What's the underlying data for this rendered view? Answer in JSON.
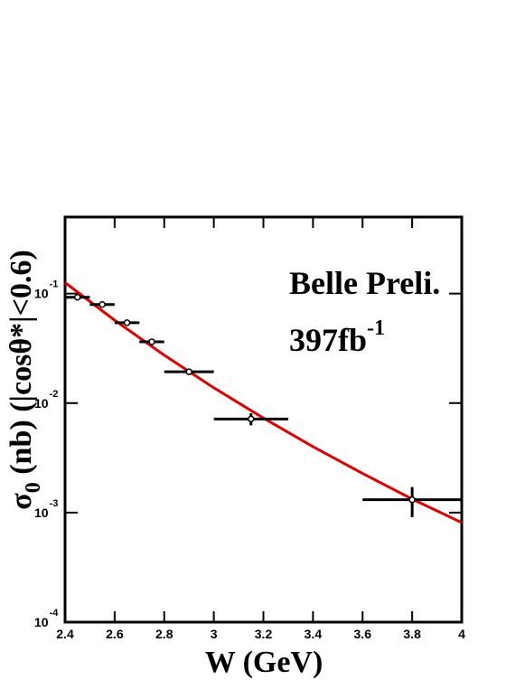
{
  "chart_data": {
    "type": "errorbar",
    "x_label": "W (GeV)",
    "y_label": {
      "symbol": "σ",
      "subscript": "0",
      "rest": "(nb) (|cosθ*|<0.6)"
    },
    "annotations": [
      {
        "text": "Belle Preli."
      },
      {
        "text": "397fb",
        "superscript": "-1"
      }
    ],
    "xlim": [
      2.4,
      4
    ],
    "xticks": [
      2.4,
      2.6,
      2.8,
      3,
      3.2,
      3.4,
      3.6,
      3.8,
      4
    ],
    "ylim": [
      0.0001,
      0.5
    ],
    "log_y": true,
    "yticks": [
      {
        "value": 0.1,
        "label": "10",
        "exponent": "-1"
      },
      {
        "value": 0.01,
        "label": "10",
        "exponent": "-2"
      },
      {
        "value": 0.001,
        "label": "10",
        "exponent": "-3"
      },
      {
        "value": 0.0001,
        "label": "10",
        "exponent": "-4"
      }
    ],
    "x": [
      2.45,
      2.55,
      2.65,
      2.75,
      2.9,
      3.15,
      3.8
    ],
    "xerr": [
      0.05,
      0.05,
      0.05,
      0.05,
      0.1,
      0.15,
      0.2
    ],
    "values": [
      0.0926,
      0.0795,
      0.0542,
      0.0363,
      0.0193,
      0.00716,
      0.00131
    ],
    "yerr": [
      0.003,
      0.0025,
      0.002,
      0.0015,
      0.0008,
      0.0009,
      0.0004
    ],
    "color": "#000000",
    "fit": {
      "x": [
        2.4,
        2.6,
        2.8,
        3.0,
        3.2,
        3.4,
        3.6,
        3.8,
        4.0
      ],
      "values": [
        0.126,
        0.0571,
        0.0274,
        0.0138,
        0.0073,
        0.004,
        0.00228,
        0.00133,
        0.00081
      ],
      "color": "#e00000"
    }
  }
}
